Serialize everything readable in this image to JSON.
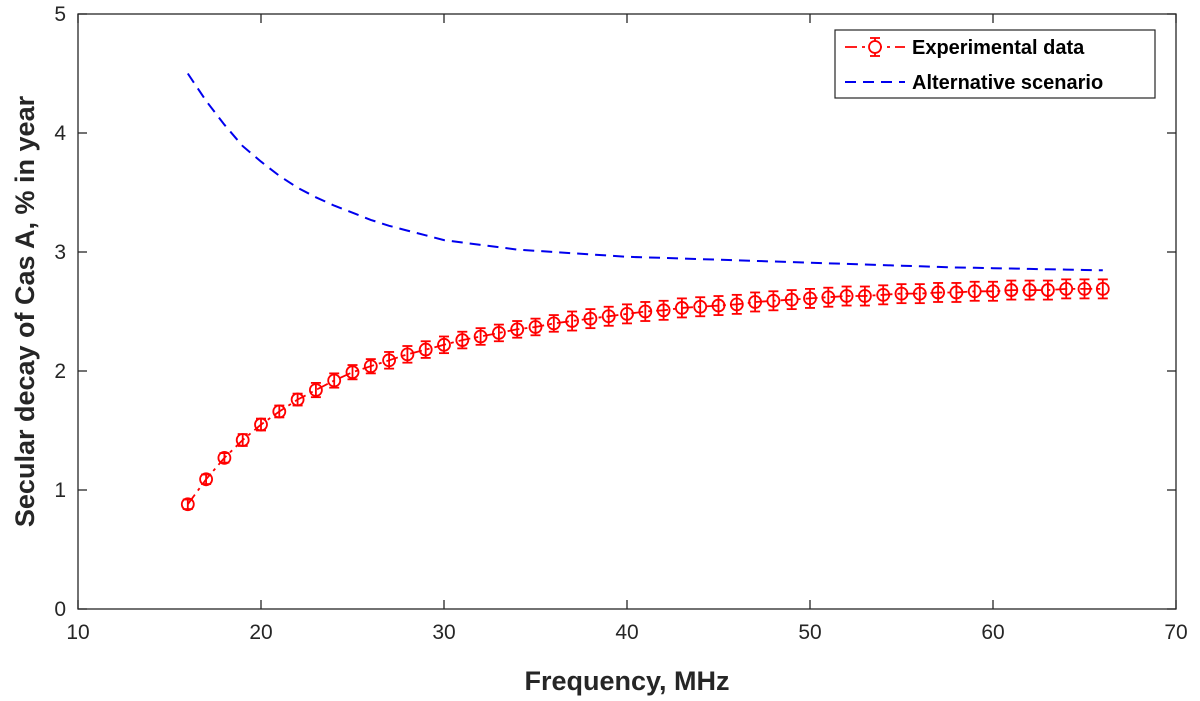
{
  "chart_data": {
    "type": "line",
    "xlabel": "Frequency, MHz",
    "ylabel": "Secular decay of Cas A, % in year",
    "xlim": [
      10,
      70
    ],
    "ylim": [
      0,
      5
    ],
    "xticks": [
      10,
      20,
      30,
      40,
      50,
      60,
      70
    ],
    "yticks": [
      0,
      1,
      2,
      3,
      4,
      5
    ],
    "grid": false,
    "legend_position": "top-right",
    "series": [
      {
        "name": "Experimental data",
        "style": "dash-dot with circle markers and error bars",
        "color": "#ff0000",
        "x": [
          16,
          17,
          18,
          19,
          20,
          21,
          22,
          23,
          24,
          25,
          26,
          27,
          28,
          29,
          30,
          31,
          32,
          33,
          34,
          35,
          36,
          37,
          38,
          39,
          40,
          41,
          42,
          43,
          44,
          45,
          46,
          47,
          48,
          49,
          50,
          51,
          52,
          53,
          54,
          55,
          56,
          57,
          58,
          59,
          60,
          61,
          62,
          63,
          64,
          65,
          66
        ],
        "y": [
          0.88,
          1.09,
          1.27,
          1.42,
          1.55,
          1.66,
          1.76,
          1.84,
          1.92,
          1.99,
          2.04,
          2.09,
          2.14,
          2.18,
          2.22,
          2.26,
          2.29,
          2.32,
          2.35,
          2.37,
          2.4,
          2.42,
          2.44,
          2.46,
          2.48,
          2.5,
          2.51,
          2.53,
          2.54,
          2.55,
          2.56,
          2.58,
          2.59,
          2.6,
          2.61,
          2.62,
          2.63,
          2.63,
          2.64,
          2.65,
          2.65,
          2.66,
          2.66,
          2.67,
          2.67,
          2.68,
          2.68,
          2.68,
          2.69,
          2.69,
          2.69
        ],
        "yerr": [
          0.04,
          0.04,
          0.04,
          0.05,
          0.05,
          0.05,
          0.05,
          0.06,
          0.06,
          0.06,
          0.06,
          0.07,
          0.07,
          0.07,
          0.07,
          0.07,
          0.07,
          0.07,
          0.07,
          0.07,
          0.07,
          0.08,
          0.08,
          0.08,
          0.08,
          0.08,
          0.08,
          0.08,
          0.08,
          0.08,
          0.08,
          0.08,
          0.08,
          0.08,
          0.08,
          0.08,
          0.08,
          0.08,
          0.08,
          0.08,
          0.08,
          0.08,
          0.08,
          0.08,
          0.08,
          0.08,
          0.08,
          0.08,
          0.08,
          0.08,
          0.08
        ]
      },
      {
        "name": "Alternative scenario",
        "style": "dashed",
        "color": "#0000ee",
        "x": [
          16,
          17,
          18,
          19,
          20,
          21,
          22,
          23,
          24,
          25,
          26,
          27,
          28,
          29,
          30,
          31,
          32,
          33,
          34,
          35,
          36,
          37,
          38,
          39,
          40,
          41,
          42,
          43,
          44,
          45,
          46,
          47,
          48,
          49,
          50,
          51,
          52,
          53,
          54,
          55,
          56,
          57,
          58,
          59,
          60,
          61,
          62,
          63,
          64,
          65,
          66
        ],
        "y": [
          4.5,
          4.27,
          4.07,
          3.89,
          3.76,
          3.64,
          3.54,
          3.46,
          3.39,
          3.33,
          3.27,
          3.22,
          3.18,
          3.14,
          3.1,
          3.08,
          3.06,
          3.04,
          3.02,
          3.01,
          3.0,
          2.99,
          2.98,
          2.97,
          2.96,
          2.955,
          2.95,
          2.945,
          2.94,
          2.935,
          2.93,
          2.925,
          2.92,
          2.915,
          2.91,
          2.905,
          2.9,
          2.895,
          2.89,
          2.885,
          2.88,
          2.875,
          2.87,
          2.867,
          2.864,
          2.861,
          2.858,
          2.855,
          2.852,
          2.849,
          2.846
        ]
      }
    ]
  }
}
